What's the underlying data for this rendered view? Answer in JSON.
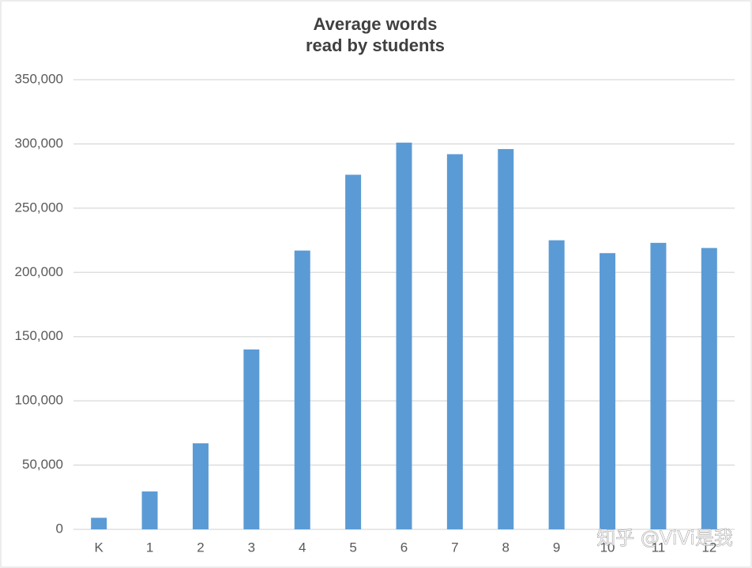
{
  "chart_data": {
    "type": "bar",
    "title": [
      "Average words",
      "read by students"
    ],
    "categories": [
      "K",
      "1",
      "2",
      "3",
      "4",
      "5",
      "6",
      "7",
      "8",
      "9",
      "10",
      "11",
      "12"
    ],
    "values": [
      9000,
      29500,
      67000,
      140000,
      217000,
      276000,
      301000,
      292000,
      296000,
      225000,
      215000,
      223000,
      219000
    ],
    "color": "#5b9bd5",
    "ylim": [
      0,
      350000
    ],
    "yticks": [
      0,
      {
        "value": 50000,
        "label": "50,000"
      },
      {
        "value": 100000,
        "label": "100,000"
      },
      {
        "value": 150000,
        "label": "150,000"
      },
      {
        "value": 200000,
        "label": "200,000"
      },
      {
        "value": 250000,
        "label": "250,000"
      },
      {
        "value": 300000,
        "label": "300,000"
      },
      {
        "value": 350000,
        "label": "350,000"
      }
    ],
    "grid": true,
    "watermark": "知乎 @ViVi是我"
  }
}
